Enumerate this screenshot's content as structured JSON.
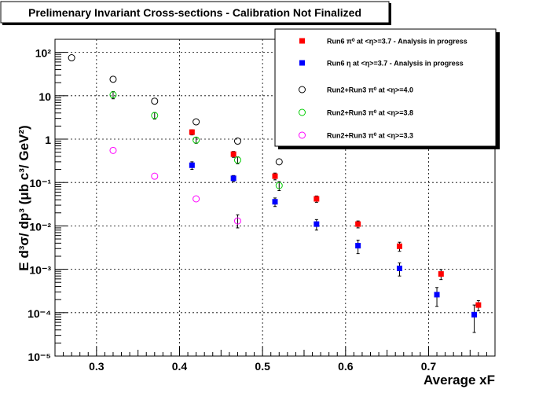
{
  "chart_data": {
    "type": "scatter",
    "title": "Prelimenary Invariant Cross-sections - Calibration Not Finalized",
    "xlabel": "Average xF",
    "ylabel": "E d³σ/ dp³ (μb c³/ GeV²)",
    "xlim": [
      0.25,
      0.78
    ],
    "ylim": [
      1e-05,
      200
    ],
    "yscale": "log",
    "grid": true,
    "legend_position": "top-right",
    "x_ticks": [
      "0.3",
      "0.4",
      "0.5",
      "0.6",
      "0.7"
    ],
    "y_ticks": [
      "10⁻⁵",
      "10⁻⁴",
      "10⁻³",
      "10⁻²",
      "10⁻¹",
      "1",
      "10",
      "10²"
    ],
    "series": [
      {
        "name": "Run6 π⁰ at <η>=3.7 - Analysis in progress",
        "color": "#ff0000",
        "marker": "filled-square",
        "x": [
          0.415,
          0.465,
          0.515,
          0.565,
          0.615,
          0.665,
          0.715,
          0.76
        ],
        "y": [
          1.45,
          0.45,
          0.14,
          0.042,
          0.011,
          0.0034,
          0.00078,
          0.00015
        ],
        "err_low": [
          0.2,
          0.07,
          0.025,
          0.007,
          0.002,
          0.0008,
          0.0002,
          4e-05
        ],
        "err_high": [
          0.2,
          0.07,
          0.025,
          0.007,
          0.002,
          0.0008,
          0.0002,
          4e-05
        ]
      },
      {
        "name": "Run6 η at <η>=3.7 - Analysis in progress",
        "color": "#0000ff",
        "marker": "filled-square",
        "x": [
          0.415,
          0.465,
          0.515,
          0.565,
          0.615,
          0.665,
          0.71,
          0.755
        ],
        "y": [
          0.25,
          0.125,
          0.036,
          0.011,
          0.0035,
          0.00105,
          0.00026,
          9e-05
        ],
        "err_low": [
          0.05,
          0.02,
          0.008,
          0.003,
          0.0012,
          0.00035,
          0.00012,
          5.5e-05
        ],
        "err_high": [
          0.05,
          0.02,
          0.008,
          0.003,
          0.0012,
          0.00035,
          0.00012,
          6e-05
        ]
      },
      {
        "name": "Run2+Run3 π⁰ at <η>=4.0",
        "color": "#000000",
        "marker": "open-circle",
        "x": [
          0.27,
          0.32,
          0.37,
          0.42,
          0.47,
          0.52
        ],
        "y": [
          75,
          24,
          7.5,
          2.5,
          0.9,
          0.3
        ]
      },
      {
        "name": "Run2+Run3 π⁰ at <η>=3.8",
        "color": "#00cc00",
        "marker": "open-circle",
        "x": [
          0.32,
          0.37,
          0.42,
          0.47,
          0.52
        ],
        "y": [
          10.5,
          3.5,
          0.95,
          0.33,
          0.085
        ],
        "err_low": [
          2.0,
          0.6,
          0.15,
          0.06,
          0.02
        ],
        "err_high": [
          2.0,
          0.6,
          0.15,
          0.06,
          0.02
        ]
      },
      {
        "name": "Run2+Run3 π⁰ at <η>=3.3",
        "color": "#ff00ff",
        "marker": "open-circle",
        "x": [
          0.32,
          0.37,
          0.42,
          0.47
        ],
        "y": [
          0.55,
          0.14,
          0.042,
          0.013
        ],
        "err_low": [
          0.0,
          0.0,
          0.0,
          0.004
        ],
        "err_high": [
          0.0,
          0.0,
          0.0,
          0.005
        ]
      }
    ]
  }
}
